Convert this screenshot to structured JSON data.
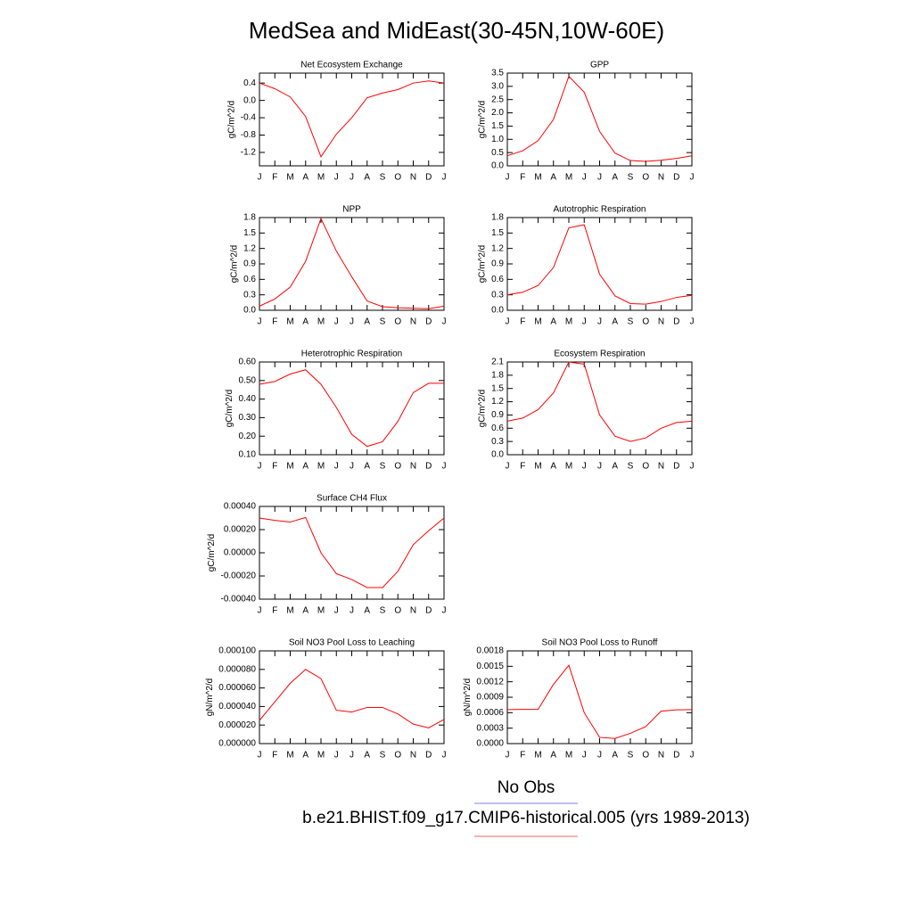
{
  "title": "MedSea and MidEast(30-45N,10W-60E)",
  "legend": [
    {
      "name": "No Obs",
      "color": "#8080ff"
    },
    {
      "name": "b.e21.BHIST.f09_g17.CMIP6-historical.005 (yrs 1989-2013)",
      "color": "#ff6060"
    }
  ],
  "chart_data": [
    {
      "type": "line",
      "title": "Net Ecosystem Exchange",
      "y_label": "gC/m^2/d",
      "categories": [
        "J",
        "F",
        "M",
        "A",
        "M",
        "J",
        "J",
        "A",
        "S",
        "O",
        "N",
        "D",
        "J"
      ],
      "series": [
        {
          "color": "#ff0000",
          "values": [
            0.4,
            0.27,
            0.08,
            -0.37,
            -1.3,
            -0.78,
            -0.4,
            0.06,
            0.17,
            0.25,
            0.4,
            0.45,
            0.4
          ]
        }
      ],
      "ylim": [
        -1.51,
        0.63
      ],
      "yticks": [
        -1.2,
        -0.8,
        -0.4,
        {
          "value": 0,
          "label": "0.0"
        },
        0.4
      ]
    },
    {
      "type": "line",
      "title": "GPP",
      "y_label": "gC/m^2/d",
      "categories": [
        "J",
        "F",
        "M",
        "A",
        "M",
        "J",
        "J",
        "A",
        "S",
        "O",
        "N",
        "D",
        "J"
      ],
      "series": [
        {
          "color": "#ff0000",
          "values": [
            0.38,
            0.57,
            0.95,
            1.75,
            3.38,
            2.78,
            1.3,
            0.48,
            0.2,
            0.17,
            0.21,
            0.28,
            0.38
          ]
        }
      ],
      "ylim": [
        0,
        3.5
      ],
      "yticks": [
        {
          "value": 0,
          "label": "0.0"
        },
        0.5,
        {
          "value": 1,
          "label": "1.0"
        },
        1.5,
        {
          "value": 2,
          "label": "2.0"
        },
        2.5,
        {
          "value": 3,
          "label": "3.0"
        },
        3.5
      ]
    },
    {
      "type": "line",
      "title": "NPP",
      "y_label": "gC/m^2/d",
      "categories": [
        "J",
        "F",
        "M",
        "A",
        "M",
        "J",
        "J",
        "A",
        "S",
        "O",
        "N",
        "D",
        "J"
      ],
      "series": [
        {
          "color": "#ff0000",
          "values": [
            0.08,
            0.22,
            0.45,
            0.95,
            1.78,
            1.15,
            0.65,
            0.18,
            0.07,
            0.05,
            0.04,
            0.03,
            0.08
          ]
        }
      ],
      "ylim": [
        0,
        1.8
      ],
      "yticks": [
        {
          "value": 0,
          "label": "0.0"
        },
        0.3,
        0.6,
        0.9,
        1.2,
        1.5,
        1.8
      ]
    },
    {
      "type": "line",
      "title": "Autotrophic Respiration",
      "y_label": "gC/m^2/d",
      "categories": [
        "J",
        "F",
        "M",
        "A",
        "M",
        "J",
        "J",
        "A",
        "S",
        "O",
        "N",
        "D",
        "J"
      ],
      "series": [
        {
          "color": "#ff0000",
          "values": [
            0.3,
            0.35,
            0.48,
            0.83,
            1.6,
            1.66,
            0.7,
            0.28,
            0.13,
            0.12,
            0.17,
            0.25,
            0.29
          ]
        }
      ],
      "ylim": [
        0,
        1.8
      ],
      "yticks": [
        {
          "value": 0,
          "label": "0.0"
        },
        0.3,
        0.6,
        0.9,
        1.2,
        1.5,
        1.8
      ]
    },
    {
      "type": "line",
      "title": "Heterotrophic Respiration",
      "y_label": "gC/m^2/d",
      "categories": [
        "J",
        "F",
        "M",
        "A",
        "M",
        "J",
        "J",
        "A",
        "S",
        "O",
        "N",
        "D",
        "J"
      ],
      "series": [
        {
          "color": "#ff0000",
          "values": [
            0.48,
            0.495,
            0.535,
            0.558,
            0.48,
            0.355,
            0.21,
            0.145,
            0.17,
            0.28,
            0.435,
            0.485,
            0.485
          ]
        }
      ],
      "ylim": [
        0.1,
        0.6
      ],
      "yticks": [
        {
          "value": 0.1,
          "label": "0.10"
        },
        {
          "value": 0.2,
          "label": "0.20"
        },
        {
          "value": 0.3,
          "label": "0.30"
        },
        {
          "value": 0.4,
          "label": "0.40"
        },
        {
          "value": 0.5,
          "label": "0.50"
        },
        {
          "value": 0.6,
          "label": "0.60"
        }
      ]
    },
    {
      "type": "line",
      "title": "Ecosystem Respiration",
      "y_label": "gC/m^2/d",
      "categories": [
        "J",
        "F",
        "M",
        "A",
        "M",
        "J",
        "J",
        "A",
        "S",
        "O",
        "N",
        "D",
        "J"
      ],
      "series": [
        {
          "color": "#ff0000",
          "values": [
            0.76,
            0.83,
            1.02,
            1.4,
            2.1,
            2.05,
            0.9,
            0.42,
            0.3,
            0.38,
            0.6,
            0.73,
            0.76
          ]
        }
      ],
      "ylim": [
        0,
        2.1
      ],
      "yticks": [
        {
          "value": 0,
          "label": "0.0"
        },
        0.3,
        0.6,
        0.9,
        1.2,
        1.5,
        1.8,
        2.1
      ]
    },
    {
      "type": "line",
      "title": "Surface CH4 Flux",
      "y_label": "gC/m^2/d",
      "categories": [
        "J",
        "F",
        "M",
        "A",
        "M",
        "J",
        "J",
        "A",
        "S",
        "O",
        "N",
        "D",
        "J"
      ],
      "series": [
        {
          "color": "#ff0000",
          "values": [
            0.0003,
            0.00028,
            0.000265,
            0.000305,
            0.0,
            -0.00018,
            -0.00023,
            -0.0003,
            -0.0003,
            -0.00016,
            7e-05,
            0.00019,
            0.0003
          ]
        }
      ],
      "ylim": [
        -0.0004,
        0.0004
      ],
      "yticks": [
        {
          "value": -0.0004,
          "label": "-0.00040"
        },
        {
          "value": -0.0002,
          "label": "-0.00020"
        },
        {
          "value": 0,
          "label": "0.00000"
        },
        {
          "value": 0.0002,
          "label": "0.00020"
        },
        {
          "value": 0.0004,
          "label": "0.00040"
        }
      ]
    },
    {
      "type": "line",
      "title": "Soil NO3 Pool Loss to Leaching",
      "y_label": "gN/m^2/d",
      "categories": [
        "J",
        "F",
        "M",
        "A",
        "M",
        "J",
        "J",
        "A",
        "S",
        "O",
        "N",
        "D",
        "J"
      ],
      "series": [
        {
          "color": "#ff0000",
          "values": [
            2.5e-05,
            4.5e-05,
            6.5e-05,
            8e-05,
            7e-05,
            3.6e-05,
            3.4e-05,
            3.9e-05,
            3.9e-05,
            3.2e-05,
            2.1e-05,
            1.7e-05,
            2.6e-05
          ]
        }
      ],
      "ylim": [
        0,
        0.0001
      ],
      "yticks": [
        {
          "value": 0,
          "label": "0.000000"
        },
        {
          "value": 2e-05,
          "label": "0.000020"
        },
        {
          "value": 4e-05,
          "label": "0.000040"
        },
        {
          "value": 6e-05,
          "label": "0.000060"
        },
        {
          "value": 8e-05,
          "label": "0.000080"
        },
        {
          "value": 0.0001,
          "label": "0.000100"
        }
      ]
    },
    {
      "type": "line",
      "title": "Soil NO3 Pool Loss to Runoff",
      "y_label": "gN/m^2/d",
      "categories": [
        "J",
        "F",
        "M",
        "A",
        "M",
        "J",
        "J",
        "A",
        "S",
        "O",
        "N",
        "D",
        "J"
      ],
      "series": [
        {
          "color": "#ff0000",
          "values": [
            0.00066,
            0.000665,
            0.000665,
            0.00115,
            0.00152,
            0.0006,
            0.00012,
            0.0001,
            0.0002,
            0.00033,
            0.00063,
            0.000655,
            0.00066
          ]
        }
      ],
      "ylim": [
        0,
        0.0018
      ],
      "yticks": [
        {
          "value": 0,
          "label": "0.0000"
        },
        {
          "value": 0.0003,
          "label": "0.0003"
        },
        {
          "value": 0.0006,
          "label": "0.0006"
        },
        {
          "value": 0.0009,
          "label": "0.0009"
        },
        {
          "value": 0.0012,
          "label": "0.0012"
        },
        {
          "value": 0.0015,
          "label": "0.0015"
        },
        {
          "value": 0.0018,
          "label": "0.0018"
        }
      ]
    }
  ]
}
